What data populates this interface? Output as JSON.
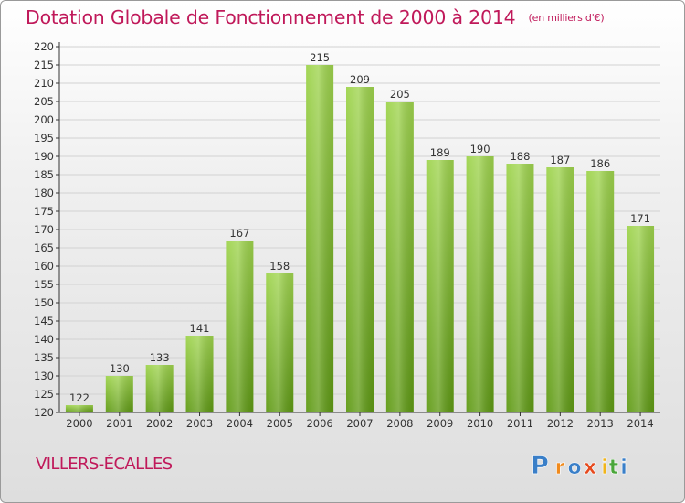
{
  "header": {
    "title": "Dotation Globale de Fonctionnement de 2000 à 2014",
    "unit": "(en milliers d'€)"
  },
  "commune": "VILLERS-ÉCALLES",
  "logo": {
    "letters": [
      "P",
      "r",
      "o",
      "x",
      "i",
      "t",
      "i"
    ]
  },
  "colors": {
    "title": "#c0195a",
    "bar_top": "#9fd44e",
    "bar_bottom": "#5f9a14",
    "axis": "#333333",
    "grid": "#d2d2d2"
  },
  "chart_data": {
    "type": "bar",
    "title": "Dotation Globale de Fonctionnement de 2000 à 2014",
    "xlabel": "",
    "ylabel": "",
    "ylim": [
      120,
      220
    ],
    "ytick_step": 5,
    "grid": true,
    "categories": [
      "2000",
      "2001",
      "2002",
      "2003",
      "2004",
      "2005",
      "2006",
      "2007",
      "2008",
      "2009",
      "2010",
      "2011",
      "2012",
      "2013",
      "2014"
    ],
    "series": [
      {
        "values": [
          122,
          130,
          133,
          141,
          167,
          158,
          215,
          209,
          205,
          189,
          190,
          188,
          187,
          186,
          171
        ]
      }
    ]
  }
}
